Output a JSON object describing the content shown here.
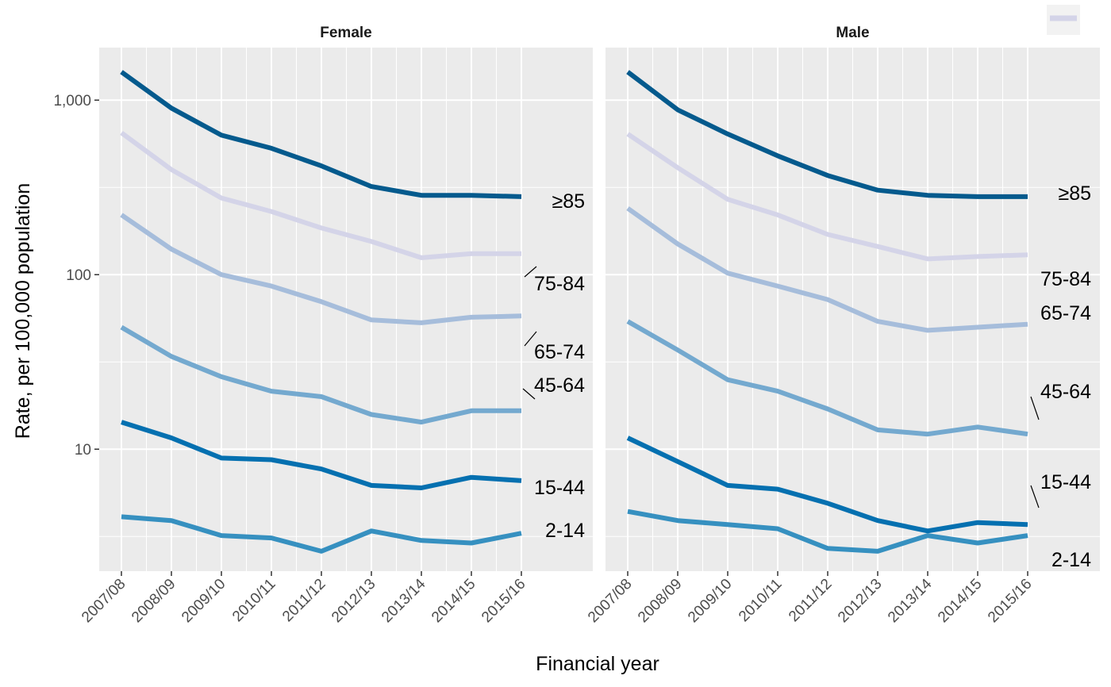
{
  "chart_data": {
    "type": "line",
    "xlabel": "Financial year",
    "ylabel": "Rate, per 100,000 population",
    "y_scale": "log10",
    "ylim": [
      2,
      2000
    ],
    "y_ticks": [
      {
        "value": 10,
        "label": "10"
      },
      {
        "value": 100,
        "label": "100"
      },
      {
        "value": 1000,
        "label": "1,000"
      }
    ],
    "x": [
      "2007/08",
      "2008/09",
      "2009/10",
      "2010/11",
      "2011/12",
      "2012/13",
      "2013/14",
      "2014/15",
      "2015/16"
    ],
    "grid": true,
    "legend": {
      "position": "top-right",
      "color": "#d4d4e8"
    },
    "panels": [
      {
        "title": "Female",
        "series": [
          {
            "name": "≥85",
            "color": "#045a8d",
            "values": [
              1450,
              900,
              630,
              530,
              420,
              320,
              285,
              285,
              280
            ]
          },
          {
            "name": "75-84",
            "color": "#d4d4e8",
            "values": [
              650,
              400,
              275,
              230,
              185,
              155,
              125,
              132,
              132
            ]
          },
          {
            "name": "65-74",
            "color": "#a6bddb",
            "values": [
              220,
              140,
              100,
              86,
              70,
              55,
              53,
              57,
              58
            ]
          },
          {
            "name": "45-64",
            "color": "#74a9cf",
            "values": [
              50,
              34,
              26,
              21.5,
              20,
              15.8,
              14.3,
              16.6,
              16.6
            ]
          },
          {
            "name": "15-44",
            "color": "#0570b0",
            "values": [
              14.3,
              11.6,
              8.9,
              8.7,
              7.7,
              6.2,
              6.0,
              6.9,
              6.6
            ]
          },
          {
            "name": "2-14",
            "color": "#3690c0",
            "values": [
              4.1,
              3.9,
              3.2,
              3.1,
              2.6,
              3.4,
              3.0,
              2.9,
              3.3
            ]
          }
        ]
      },
      {
        "title": "Male",
        "series": [
          {
            "name": "≥85",
            "color": "#045a8d",
            "values": [
              1450,
              880,
              640,
              480,
              370,
              305,
              285,
              280,
              280
            ]
          },
          {
            "name": "75-84",
            "color": "#d4d4e8",
            "values": [
              640,
              410,
              270,
              220,
              170,
              145,
              123,
              127,
              130
            ]
          },
          {
            "name": "65-74",
            "color": "#a6bddb",
            "values": [
              240,
              150,
              102,
              86,
              72,
              54,
              48,
              50,
              52
            ]
          },
          {
            "name": "45-64",
            "color": "#74a9cf",
            "values": [
              54,
              37,
              25,
              21.5,
              17,
              12.9,
              12.2,
              13.4,
              12.2
            ]
          },
          {
            "name": "15-44",
            "color": "#0570b0",
            "values": [
              11.6,
              8.5,
              6.2,
              5.9,
              4.9,
              3.9,
              3.4,
              3.8,
              3.7
            ]
          },
          {
            "name": "2-14",
            "color": "#3690c0",
            "values": [
              4.4,
              3.9,
              3.7,
              3.5,
              2.7,
              2.6,
              3.2,
              2.9,
              3.2
            ]
          }
        ]
      }
    ]
  }
}
